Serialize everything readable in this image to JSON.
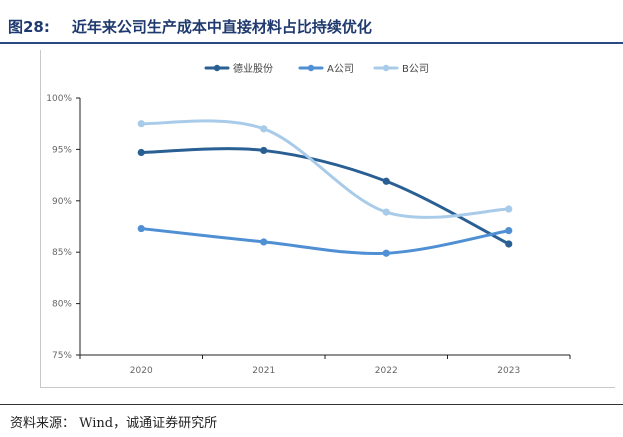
{
  "figure": {
    "number": "图28:",
    "title": "近年来公司生产成本中直接材料占比持续优化"
  },
  "source": "资料来源： Wind，诚通证券研究所",
  "chart_data": {
    "type": "line",
    "categories": [
      "2020",
      "2021",
      "2022",
      "2023"
    ],
    "y_ticks": [
      "75%",
      "80%",
      "85%",
      "90%",
      "95%",
      "100%"
    ],
    "ylim": [
      75,
      100
    ],
    "unit": "%",
    "series": [
      {
        "name": "德业股份",
        "color": "#2a5f93",
        "values": [
          94.7,
          94.9,
          91.9,
          85.8
        ]
      },
      {
        "name": "A公司",
        "color": "#4f8fd4",
        "values": [
          87.3,
          86.0,
          84.9,
          87.1
        ]
      },
      {
        "name": "B公司",
        "color": "#a9cbea",
        "values": [
          97.5,
          97.0,
          88.9,
          89.2
        ]
      }
    ],
    "legend_position": "top-center",
    "grid": false
  }
}
